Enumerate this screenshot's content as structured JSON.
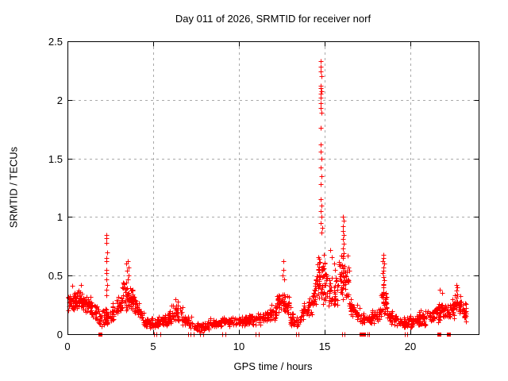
{
  "chart_data": {
    "type": "scatter",
    "title": "Day 011 of 2026, SRMTID for receiver norf",
    "xlabel": "GPS time / hours",
    "ylabel": "SRMTID / TECUs",
    "series_name": "SRMTID",
    "xlim": [
      0,
      24
    ],
    "ylim": [
      0,
      2.5
    ],
    "x_ticks": [
      0,
      5,
      10,
      15,
      20
    ],
    "x_tick_labels": [
      "0",
      "5",
      "10",
      "15",
      "20"
    ],
    "y_ticks": [
      0,
      0.5,
      1,
      1.5,
      2,
      2.5
    ],
    "y_tick_labels": [
      "0",
      "0.5",
      "1",
      "1.5",
      "2",
      "2.5"
    ],
    "grid": {
      "show": true,
      "style": "dashed",
      "color": "#a9a9a9"
    },
    "marker": {
      "symbol": "plus",
      "color": "#ff0000",
      "size": 7
    },
    "axis_color": "#000000",
    "background": "#ffffff",
    "bands": [
      [
        0.0,
        0.7,
        0.27,
        0.3,
        0.09,
        55
      ],
      [
        0.7,
        1.4,
        0.3,
        0.24,
        0.09,
        55
      ],
      [
        1.4,
        2.0,
        0.22,
        0.14,
        0.08,
        40
      ],
      [
        2.0,
        2.6,
        0.14,
        0.16,
        0.08,
        40
      ],
      [
        2.6,
        3.2,
        0.18,
        0.28,
        0.09,
        45
      ],
      [
        3.2,
        3.9,
        0.33,
        0.3,
        0.13,
        60
      ],
      [
        3.9,
        4.5,
        0.25,
        0.13,
        0.08,
        40
      ],
      [
        4.5,
        5.3,
        0.1,
        0.09,
        0.05,
        50
      ],
      [
        5.3,
        5.9,
        0.1,
        0.13,
        0.06,
        40
      ],
      [
        5.9,
        6.7,
        0.17,
        0.18,
        0.08,
        55
      ],
      [
        6.7,
        7.3,
        0.13,
        0.09,
        0.06,
        40
      ],
      [
        7.3,
        8.3,
        0.06,
        0.07,
        0.05,
        65
      ],
      [
        8.3,
        9.4,
        0.09,
        0.11,
        0.05,
        60
      ],
      [
        9.4,
        10.6,
        0.11,
        0.12,
        0.05,
        65
      ],
      [
        10.6,
        11.6,
        0.12,
        0.14,
        0.06,
        55
      ],
      [
        11.6,
        12.2,
        0.15,
        0.2,
        0.08,
        40
      ],
      [
        12.2,
        13.0,
        0.27,
        0.26,
        0.11,
        60
      ],
      [
        13.0,
        13.6,
        0.13,
        0.1,
        0.07,
        40
      ],
      [
        13.6,
        14.3,
        0.14,
        0.26,
        0.09,
        45
      ],
      [
        14.3,
        14.6,
        0.3,
        0.4,
        0.12,
        25
      ],
      [
        14.6,
        15.1,
        0.5,
        0.45,
        0.22,
        60
      ],
      [
        15.1,
        15.8,
        0.38,
        0.32,
        0.16,
        45
      ],
      [
        15.8,
        16.45,
        0.5,
        0.45,
        0.22,
        55
      ],
      [
        16.45,
        17.1,
        0.25,
        0.16,
        0.08,
        40
      ],
      [
        17.1,
        17.8,
        0.14,
        0.13,
        0.06,
        40
      ],
      [
        17.8,
        18.3,
        0.15,
        0.18,
        0.07,
        35
      ],
      [
        18.3,
        18.65,
        0.3,
        0.28,
        0.14,
        30
      ],
      [
        18.65,
        19.3,
        0.16,
        0.12,
        0.06,
        40
      ],
      [
        19.3,
        20.4,
        0.1,
        0.11,
        0.05,
        60
      ],
      [
        20.4,
        21.3,
        0.13,
        0.16,
        0.07,
        55
      ],
      [
        21.3,
        22.1,
        0.18,
        0.2,
        0.09,
        55
      ],
      [
        22.1,
        22.6,
        0.18,
        0.22,
        0.09,
        35
      ],
      [
        22.6,
        23.0,
        0.25,
        0.22,
        0.11,
        30
      ],
      [
        23.0,
        23.3,
        0.2,
        0.18,
        0.09,
        20
      ]
    ],
    "points": [
      [
        14.78,
        2.33
      ],
      [
        14.8,
        2.28
      ],
      [
        14.76,
        2.24
      ],
      [
        14.82,
        2.2
      ],
      [
        14.79,
        2.12
      ],
      [
        14.77,
        2.1
      ],
      [
        14.81,
        2.07
      ],
      [
        14.78,
        2.05
      ],
      [
        14.8,
        2.02
      ],
      [
        14.76,
        1.97
      ],
      [
        14.79,
        1.93
      ],
      [
        14.82,
        1.89
      ],
      [
        14.78,
        1.76
      ],
      [
        14.8,
        1.62
      ],
      [
        14.77,
        1.56
      ],
      [
        14.81,
        1.5
      ],
      [
        14.79,
        1.42
      ],
      [
        14.83,
        1.35
      ],
      [
        14.78,
        1.28
      ],
      [
        14.8,
        1.15
      ],
      [
        14.84,
        1.1
      ],
      [
        14.79,
        1.05
      ],
      [
        14.82,
        1.0
      ],
      [
        14.77,
        0.95
      ],
      [
        14.85,
        0.91
      ],
      [
        14.81,
        0.87
      ],
      [
        2.27,
        0.85
      ],
      [
        2.29,
        0.82
      ],
      [
        2.26,
        0.78
      ],
      [
        2.3,
        0.7
      ],
      [
        2.28,
        0.65
      ],
      [
        2.27,
        0.62
      ],
      [
        2.29,
        0.55
      ],
      [
        2.26,
        0.52
      ],
      [
        2.28,
        0.47
      ],
      [
        2.3,
        0.42
      ],
      [
        2.27,
        0.38
      ],
      [
        2.29,
        0.33
      ],
      [
        3.45,
        0.6
      ],
      [
        3.52,
        0.62
      ],
      [
        3.55,
        0.57
      ],
      [
        3.48,
        0.54
      ],
      [
        3.58,
        0.5
      ],
      [
        3.5,
        0.47
      ],
      [
        12.58,
        0.62
      ],
      [
        12.62,
        0.55
      ],
      [
        12.55,
        0.5
      ],
      [
        12.66,
        0.47
      ],
      [
        15.35,
        0.72
      ],
      [
        15.45,
        0.66
      ],
      [
        15.55,
        0.6
      ],
      [
        15.6,
        0.55
      ],
      [
        16.08,
        1.0
      ],
      [
        16.12,
        0.97
      ],
      [
        16.1,
        0.92
      ],
      [
        16.06,
        0.88
      ],
      [
        16.14,
        0.85
      ],
      [
        16.09,
        0.81
      ],
      [
        16.11,
        0.77
      ],
      [
        16.07,
        0.73
      ],
      [
        16.13,
        0.69
      ],
      [
        16.1,
        0.65
      ],
      [
        18.42,
        0.68
      ],
      [
        18.45,
        0.65
      ],
      [
        18.4,
        0.62
      ],
      [
        18.47,
        0.6
      ],
      [
        18.43,
        0.57
      ],
      [
        18.46,
        0.54
      ],
      [
        18.41,
        0.52
      ],
      [
        18.44,
        0.49
      ],
      [
        18.48,
        0.46
      ],
      [
        18.42,
        0.43
      ],
      [
        18.45,
        0.4
      ],
      [
        18.43,
        0.36
      ],
      [
        18.46,
        0.33
      ],
      [
        22.72,
        0.42
      ],
      [
        22.75,
        0.4
      ],
      [
        22.7,
        0.37
      ],
      [
        22.74,
        0.34
      ],
      [
        22.71,
        0.31
      ],
      [
        0.3,
        0.41
      ],
      [
        0.8,
        0.42
      ],
      [
        6.3,
        0.3
      ],
      [
        6.45,
        0.28
      ],
      [
        21.75,
        0.38
      ],
      [
        21.85,
        0.35
      ]
    ],
    "zero_markers": {
      "squares": [
        1.9,
        17.15,
        17.3,
        21.7,
        22.25
      ],
      "ticks": [
        5.05,
        5.2,
        5.4,
        7.05,
        7.2,
        7.35,
        7.75,
        7.9,
        9.05,
        9.2,
        11.0,
        11.15,
        13.35,
        13.5,
        16.05,
        16.15,
        17.5,
        17.6,
        19.7,
        19.85
      ]
    }
  }
}
